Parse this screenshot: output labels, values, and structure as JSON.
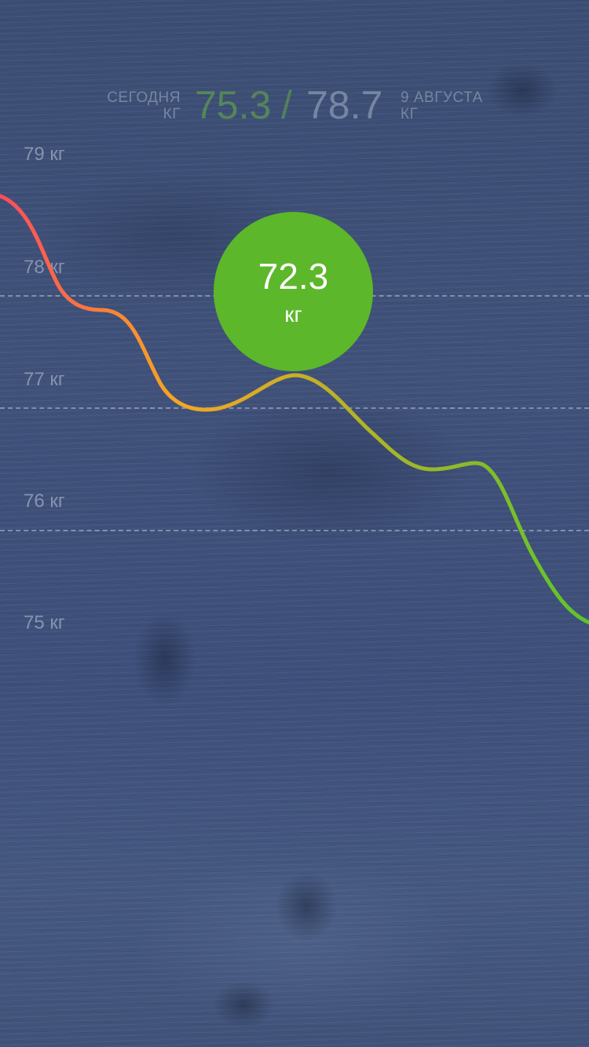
{
  "header": {
    "left_label_line1": "СЕГОДНЯ",
    "left_label_line2": "КГ",
    "today_value": "75.3",
    "separator": "/",
    "target_value": "78.7",
    "right_label_line1": "9 АВГУСТА",
    "right_label_line2": "КГ"
  },
  "y_axis": {
    "labels": [
      "79 кг",
      "78 кг",
      "77 кг",
      "76 кг",
      "75 кг"
    ]
  },
  "bubble": {
    "value": "72.3",
    "unit": "кг"
  },
  "colors": {
    "curve_start": "#ff4a5c",
    "curve_mid": "#f5a623",
    "curve_end": "#5cc52a",
    "bubble": "#5cb72a",
    "background": "#3c4f78"
  },
  "icons": {}
}
